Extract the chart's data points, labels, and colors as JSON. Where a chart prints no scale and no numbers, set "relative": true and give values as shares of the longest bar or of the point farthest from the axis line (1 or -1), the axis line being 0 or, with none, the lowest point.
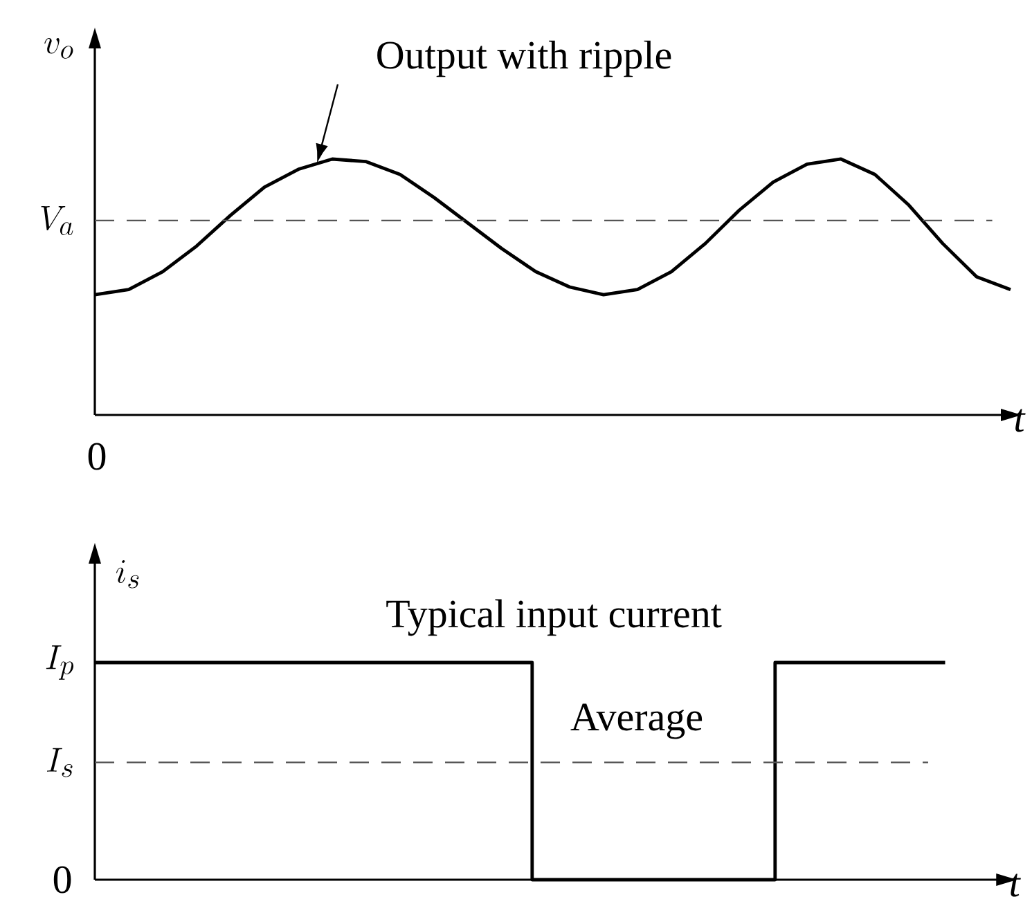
{
  "chart_data": [
    {
      "type": "line",
      "relative": true,
      "ylabel": "v_o",
      "xlabel": "t",
      "categories": [
        null,
        null,
        null,
        null,
        null,
        null,
        null,
        null,
        null,
        null,
        null,
        null,
        null,
        null,
        null,
        null,
        null,
        null,
        null,
        null,
        null,
        null,
        null,
        null,
        null,
        null,
        null,
        null
      ],
      "series": [
        {
          "color": "#000000",
          "values": [
            0.47,
            0.49,
            0.56,
            0.66,
            0.78,
            0.89,
            0.96,
            1.0,
            0.99,
            0.94,
            0.85,
            0.75,
            0.65,
            0.56,
            0.5,
            0.47,
            0.49,
            0.56,
            0.67,
            0.8,
            0.91,
            0.98,
            1.0,
            0.94,
            0.82,
            0.67,
            0.54,
            0.49
          ]
        }
      ],
      "ref_lines": [
        {
          "axis": "y",
          "value": 0.76,
          "label": "V_a",
          "color": "#555555",
          "line_style": "dashed"
        }
      ],
      "annotations": [
        "Output with ripple",
        "0"
      ]
    },
    {
      "type": "step",
      "relative": true,
      "ylabel": "i_s",
      "xlabel": "t",
      "categories": [
        null,
        null,
        null,
        null,
        null,
        null,
        null,
        null,
        null,
        null,
        null,
        null,
        null,
        null,
        null,
        null,
        null,
        null,
        null,
        null,
        null,
        null,
        null,
        null,
        null,
        null,
        null,
        null,
        null,
        null,
        null,
        null,
        null,
        null,
        null,
        null
      ],
      "series": [
        {
          "color": "#000000",
          "values": [
            1,
            1,
            1,
            1,
            1,
            1,
            1,
            1,
            1,
            1,
            1,
            1,
            1,
            1,
            1,
            1,
            1,
            1,
            0,
            0,
            0,
            0,
            0,
            0,
            0,
            0,
            0,
            0,
            1,
            1,
            1,
            1,
            1,
            1,
            1,
            1
          ]
        }
      ],
      "ref_lines": [
        {
          "axis": "y",
          "value": 0.54,
          "label": "I_s",
          "color": "#555555",
          "line_style": "dashed"
        }
      ],
      "annotations": [
        "Typical input current",
        "Average",
        "I_p",
        "0"
      ]
    }
  ]
}
